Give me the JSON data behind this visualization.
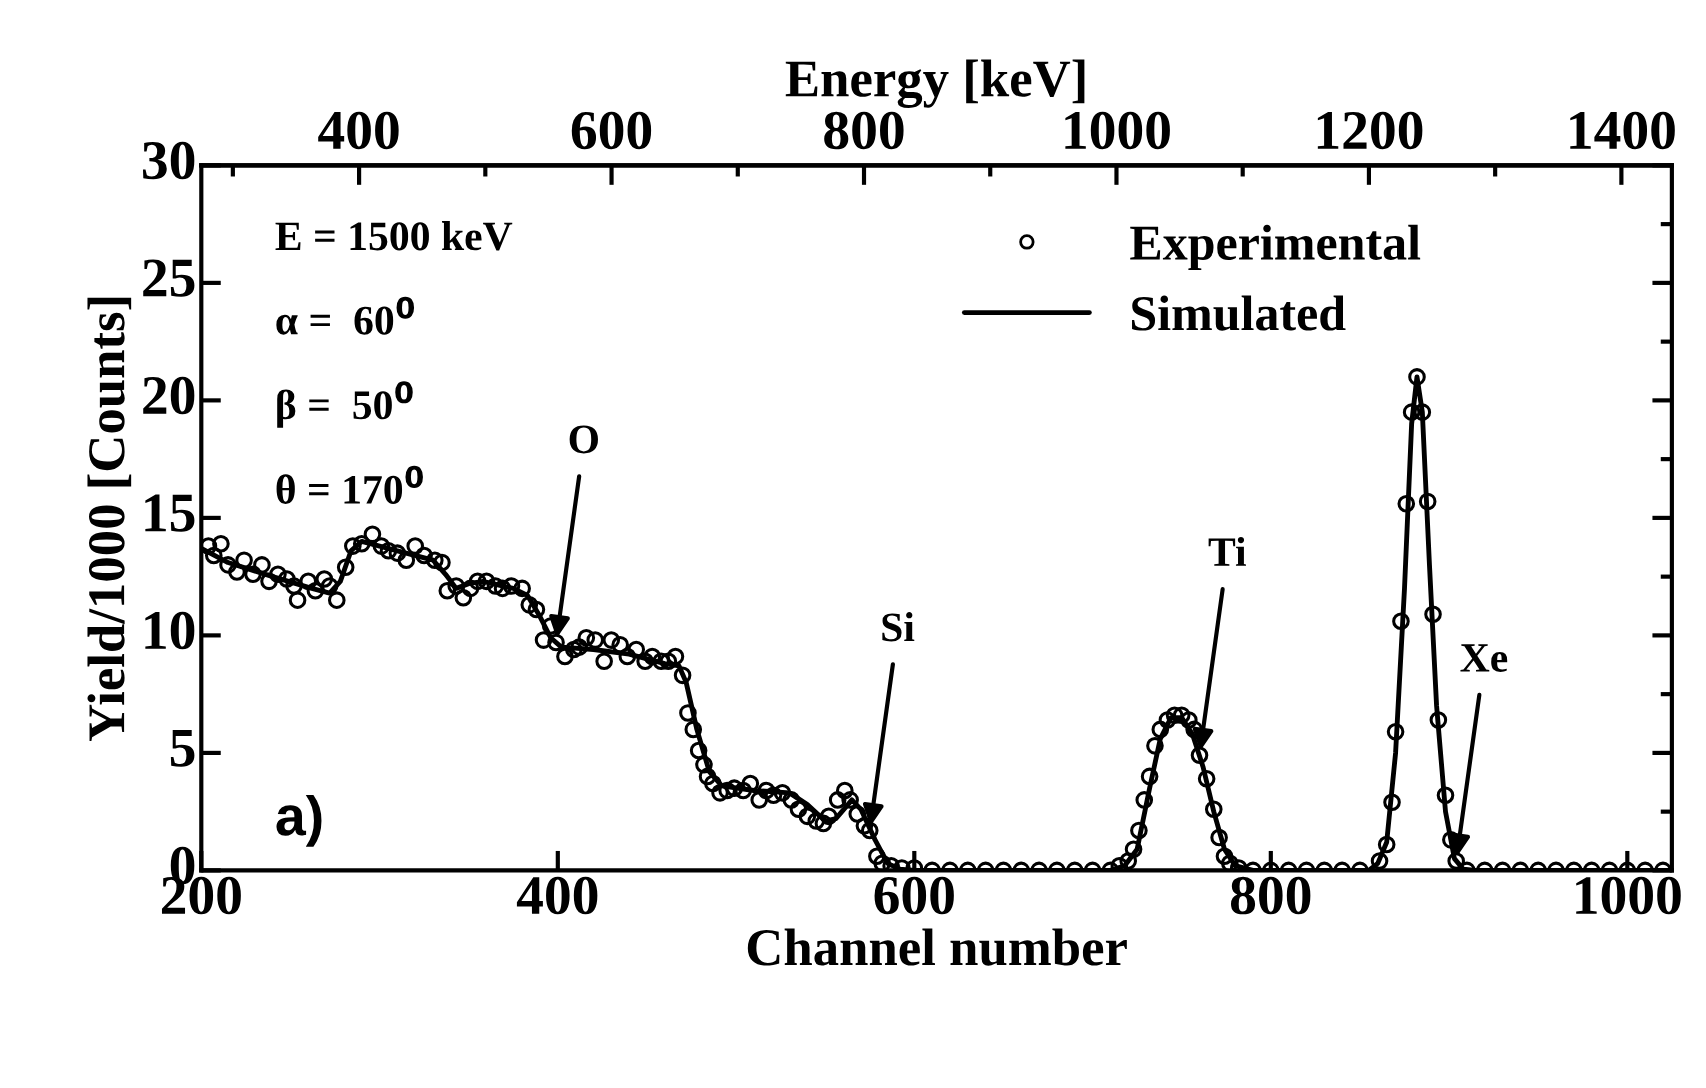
{
  "chart_data": {
    "type": "scatter",
    "xlabel": "Channel number",
    "ylabel": "Yield/1000 [Counts]",
    "x2label": "Energy [keV]",
    "xlim": [
      200,
      1025
    ],
    "xticks": [
      200,
      400,
      600,
      800,
      1000
    ],
    "ylim": [
      0,
      30
    ],
    "yticks": [
      0,
      5,
      10,
      15,
      20,
      25,
      30
    ],
    "x2lim": [
      275,
      1440
    ],
    "x2ticks": [
      400,
      600,
      800,
      1000,
      1200,
      1400
    ],
    "legend": "top right",
    "grid": false,
    "series": [
      {
        "name": "Experimental",
        "marker": "circle",
        "color": "#000000",
        "x": [
          204,
          207,
          211,
          215,
          220,
          224,
          229,
          234,
          238,
          243,
          248,
          252,
          254,
          260,
          264,
          269,
          272,
          276,
          281,
          285,
          290,
          296,
          301,
          305,
          310,
          315,
          320,
          325,
          331,
          335,
          338,
          343,
          347,
          351,
          355,
          360,
          365,
          369,
          374,
          380,
          384,
          388,
          392,
          396,
          399,
          404,
          409,
          412,
          416,
          421,
          426,
          430,
          435,
          439,
          444,
          449,
          453,
          458,
          462,
          466,
          470,
          473,
          476,
          479,
          482,
          484,
          487,
          491,
          495,
          499,
          504,
          508,
          513,
          517,
          521,
          526,
          531,
          535,
          540,
          545,
          549,
          552,
          557,
          561,
          564,
          568,
          572,
          575,
          579,
          582,
          587,
          593,
          600,
          610,
          620,
          630,
          640,
          650,
          660,
          670,
          680,
          690,
          700,
          710,
          715,
          720,
          723,
          726,
          729,
          732,
          735,
          738,
          742,
          746,
          750,
          754,
          757,
          760,
          764,
          768,
          771,
          774,
          777,
          782,
          790,
          800,
          810,
          820,
          830,
          840,
          850,
          861,
          865,
          868,
          870,
          873,
          876,
          879,
          882,
          885,
          888,
          891,
          894,
          898,
          901,
          904,
          910,
          920,
          930,
          940,
          950,
          960,
          970,
          980,
          990,
          1000,
          1010,
          1020
        ],
        "values": [
          13.8,
          13.4,
          13.9,
          13.0,
          12.7,
          13.2,
          12.6,
          13.0,
          12.3,
          12.6,
          12.4,
          12.1,
          11.5,
          12.3,
          11.9,
          12.4,
          12.1,
          11.5,
          12.9,
          13.8,
          13.9,
          14.3,
          13.8,
          13.6,
          13.5,
          13.2,
          13.8,
          13.4,
          13.2,
          13.1,
          11.9,
          12.1,
          11.6,
          12.0,
          12.3,
          12.3,
          12.1,
          12.0,
          12.1,
          12.0,
          11.3,
          11.1,
          9.8,
          10.4,
          9.7,
          9.1,
          9.4,
          9.5,
          9.9,
          9.8,
          8.9,
          9.8,
          9.6,
          9.1,
          9.4,
          8.9,
          9.1,
          8.9,
          8.9,
          9.1,
          8.3,
          6.7,
          6.0,
          5.1,
          4.5,
          4.0,
          3.7,
          3.3,
          3.4,
          3.5,
          3.4,
          3.7,
          3.0,
          3.4,
          3.2,
          3.3,
          3.0,
          2.6,
          2.3,
          2.1,
          2.0,
          2.3,
          3.0,
          3.4,
          3.0,
          2.4,
          1.9,
          1.7,
          0.6,
          0.3,
          0.2,
          0.1,
          0.1,
          0,
          0,
          0,
          0,
          0,
          0,
          0,
          0,
          0,
          0,
          0,
          0.2,
          0.4,
          0.9,
          1.7,
          3.0,
          4.0,
          5.3,
          6.0,
          6.4,
          6.6,
          6.6,
          6.4,
          6.0,
          4.9,
          3.9,
          2.6,
          1.4,
          0.6,
          0.3,
          0.1,
          0,
          0,
          0,
          0,
          0,
          0,
          0,
          0.4,
          1.1,
          2.9,
          5.9,
          10.6,
          15.6,
          19.5,
          21.0,
          19.5,
          15.7,
          10.9,
          6.4,
          3.2,
          1.3,
          0.4,
          0,
          0,
          0,
          0,
          0,
          0,
          0,
          0,
          0,
          0,
          0,
          0
        ]
      },
      {
        "name": "Simulated",
        "type": "line",
        "line_style": "solid",
        "marker": "none",
        "color": "#000000",
        "x": [
          200,
          215,
          240,
          262,
          272,
          278,
          284,
          290,
          310,
          330,
          337,
          343,
          350,
          358,
          375,
          383,
          390,
          396,
          402,
          420,
          440,
          460,
          468,
          472,
          478,
          485,
          492,
          510,
          530,
          540,
          550,
          556,
          565,
          570,
          578,
          585,
          592,
          600,
          710,
          718,
          725,
          732,
          738,
          744,
          750,
          756,
          762,
          768,
          774,
          780,
          790,
          855,
          860,
          865,
          870,
          875,
          879,
          882,
          885,
          889,
          893,
          898,
          903,
          908,
          915,
          1025
        ],
        "values": [
          13.7,
          13.1,
          12.5,
          12.0,
          11.8,
          12.3,
          13.6,
          14.0,
          13.6,
          13.2,
          12.6,
          12.0,
          12.2,
          12.3,
          12.0,
          11.7,
          10.8,
          9.9,
          9.5,
          9.4,
          9.2,
          8.8,
          8.7,
          8.0,
          6.0,
          4.2,
          3.6,
          3.4,
          3.3,
          2.8,
          2.1,
          2.2,
          3.0,
          2.6,
          1.3,
          0.3,
          0.05,
          0,
          0,
          0.2,
          0.9,
          3.5,
          5.6,
          6.5,
          6.5,
          5.8,
          4.4,
          2.5,
          0.9,
          0.2,
          0,
          0,
          0.3,
          1.2,
          5.0,
          12.0,
          19.0,
          21.0,
          19.5,
          13.0,
          7.0,
          2.5,
          0.5,
          0.05,
          0,
          0
        ]
      }
    ],
    "annotations": [
      "E = 1500 keV",
      "α =  60$^{0}$",
      "β =  50$^{0}$",
      "θ = 170$^{0}$",
      "a)",
      {
        "text": "O",
        "x": 399,
        "y": 9.7
      },
      {
        "text": "Si",
        "x": 575,
        "y": 1.7
      },
      {
        "text": "Ti",
        "x": 760,
        "y": 4.9
      },
      {
        "text": "Xe",
        "x": 904,
        "y": 0.4
      }
    ]
  }
}
